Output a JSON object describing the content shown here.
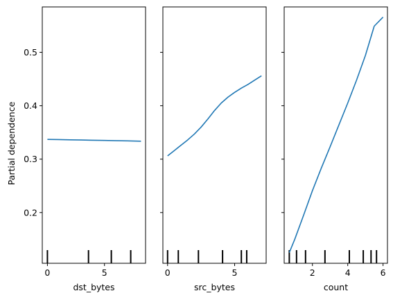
{
  "chart_data": {
    "type": "line",
    "ylabel": "Partial dependence",
    "ylim": [
      0.105,
      0.585
    ],
    "yticks": [
      0.2,
      0.3,
      0.4,
      0.5
    ],
    "ytick_labels": [
      "0.2",
      "0.3",
      "0.4",
      "0.5"
    ],
    "line_color": "#1f77b4",
    "panels": [
      {
        "xlabel": "dst_bytes",
        "xlim": [
          -0.45,
          8.6
        ],
        "xticks": [
          0,
          5
        ],
        "xtick_labels": [
          "0",
          "5"
        ],
        "x": [
          0.0,
          1.0,
          2.0,
          3.0,
          4.0,
          5.0,
          6.0,
          7.0,
          8.2
        ],
        "y": [
          0.337,
          0.3366,
          0.3362,
          0.3358,
          0.3354,
          0.335,
          0.3346,
          0.3342,
          0.3335
        ],
        "deciles": [
          0.0,
          3.6,
          5.6,
          7.3
        ]
      },
      {
        "xlabel": "src_bytes",
        "xlim": [
          -0.35,
          7.35
        ],
        "xticks": [
          0,
          5
        ],
        "xtick_labels": [
          "0",
          "5"
        ],
        "x": [
          0.0,
          0.5,
          1.0,
          1.5,
          2.0,
          2.5,
          3.0,
          3.5,
          4.0,
          4.5,
          5.0,
          5.5,
          6.0,
          6.5,
          7.0
        ],
        "y": [
          0.306,
          0.316,
          0.326,
          0.336,
          0.347,
          0.36,
          0.375,
          0.391,
          0.405,
          0.416,
          0.425,
          0.433,
          0.44,
          0.448,
          0.456
        ],
        "deciles": [
          0.0,
          0.8,
          2.3,
          4.1,
          5.5,
          5.9
        ]
      },
      {
        "xlabel": "count",
        "xlim": [
          0.4,
          6.25
        ],
        "xticks": [
          2,
          4,
          6
        ],
        "xtick_labels": [
          "2",
          "4",
          "6"
        ],
        "x": [
          0.69,
          1.0,
          1.5,
          2.0,
          2.5,
          3.0,
          3.5,
          4.0,
          4.5,
          5.0,
          5.5,
          6.0
        ],
        "y": [
          0.125,
          0.15,
          0.195,
          0.241,
          0.283,
          0.323,
          0.364,
          0.405,
          0.448,
          0.494,
          0.549,
          0.566
        ],
        "deciles": [
          0.69,
          1.1,
          1.61,
          2.71,
          4.09,
          4.88,
          5.32,
          5.63
        ]
      }
    ]
  }
}
